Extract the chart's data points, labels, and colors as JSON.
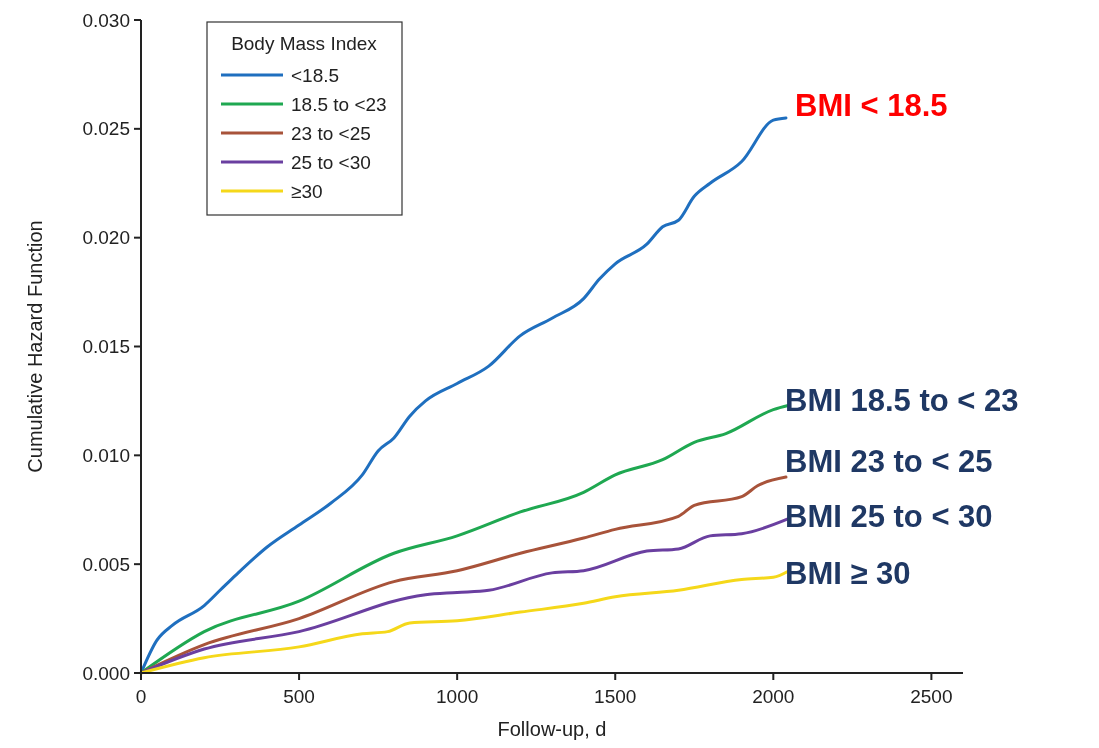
{
  "chart_data": {
    "type": "line",
    "xlabel": "Follow-up, d",
    "ylabel": "Cumulative Hazard Function",
    "legend_title": "Body Mass Index",
    "legend": "top left",
    "grid": false,
    "marker": "none",
    "line_style": "solid",
    "xlim": [
      0,
      2600
    ],
    "xticks": [
      0,
      500,
      1000,
      1500,
      2000,
      2500
    ],
    "ylim": [
      0,
      0.03
    ],
    "yticks": [
      {
        "value": 0,
        "label": "0.000"
      },
      {
        "value": 0.005,
        "label": "0.005"
      },
      {
        "value": 0.01,
        "label": "0.010"
      },
      {
        "value": 0.015,
        "label": "0.015"
      },
      {
        "value": 0.02,
        "label": "0.020"
      },
      {
        "value": 0.025,
        "label": "0.025"
      },
      {
        "value": 0.03,
        "label": "0.030"
      }
    ],
    "series": [
      {
        "name": "<18.5",
        "color": "#1f6fbf",
        "x": [
          0,
          50,
          100,
          200,
          250,
          300,
          400,
          500,
          600,
          700,
          750,
          800,
          850,
          900,
          1000,
          1100,
          1200,
          1300,
          1400,
          1450,
          1500,
          1600,
          1650,
          1700,
          1750,
          1800,
          1900,
          2000,
          2040
        ],
        "values": [
          0,
          0.0015,
          0.0022,
          0.0031,
          0.0038,
          0.0045,
          0.0058,
          0.0068,
          0.0078,
          0.0091,
          0.0102,
          0.0108,
          0.0118,
          0.0125,
          0.0133,
          0.0141,
          0.0155,
          0.0163,
          0.0172,
          0.0181,
          0.0188,
          0.0197,
          0.0205,
          0.0208,
          0.0219,
          0.0225,
          0.0235,
          0.0254,
          0.0255
        ]
      },
      {
        "name": "18.5 to <23",
        "color": "#1fa851",
        "x": [
          0,
          200,
          500,
          800,
          1000,
          1200,
          1400,
          1500,
          1650,
          1750,
          1850,
          2000,
          2050
        ],
        "values": [
          0,
          0.0019,
          0.0033,
          0.0055,
          0.0063,
          0.0074,
          0.0083,
          0.0091,
          0.0098,
          0.0106,
          0.011,
          0.0121,
          0.0123
        ]
      },
      {
        "name": "23 to <25",
        "color": "#a8533a",
        "x": [
          0,
          200,
          500,
          800,
          1000,
          1200,
          1400,
          1500,
          1700,
          1750,
          1900,
          1950,
          2040
        ],
        "values": [
          0,
          0.0013,
          0.0025,
          0.0042,
          0.0047,
          0.0055,
          0.0062,
          0.0066,
          0.0072,
          0.0077,
          0.0081,
          0.0086,
          0.009
        ]
      },
      {
        "name": "25 to <30",
        "color": "#6a3fa0",
        "x": [
          0,
          200,
          500,
          900,
          1000,
          1100,
          1300,
          1400,
          1600,
          1700,
          1800,
          1900,
          2050
        ],
        "values": [
          0,
          0.0011,
          0.0019,
          0.0036,
          0.0037,
          0.0038,
          0.0046,
          0.0047,
          0.0056,
          0.0057,
          0.0063,
          0.0064,
          0.0071
        ]
      },
      {
        "name": "≥30",
        "color": "#f5d81a",
        "x": [
          0,
          200,
          500,
          700,
          780,
          850,
          1000,
          1200,
          1400,
          1500,
          1700,
          1900,
          2000,
          2050
        ],
        "values": [
          0,
          0.0007,
          0.0012,
          0.0018,
          0.0019,
          0.0023,
          0.0024,
          0.0028,
          0.0032,
          0.0035,
          0.0038,
          0.0043,
          0.0044,
          0.0047
        ]
      }
    ],
    "annotations": [
      "BMI < 18.5",
      "BMI 18.5 to < 23",
      "BMI 23 to < 25",
      "BMI 25 to < 30",
      "BMI ≥ 30"
    ]
  }
}
